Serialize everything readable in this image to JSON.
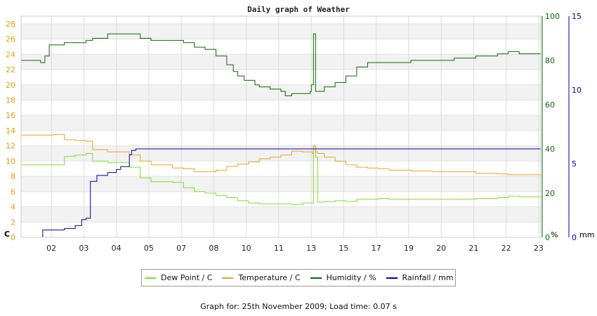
{
  "chart_data": {
    "type": "line",
    "title": "Daily graph of Weather",
    "x_tick_labels": [
      "02",
      "03",
      "04",
      "05",
      "07",
      "08",
      "10",
      "11",
      "13",
      "15",
      "17",
      "19",
      "20",
      "21",
      "22",
      "23"
    ],
    "axes": {
      "left": {
        "unit_label": "C",
        "ticks": [
          "0",
          "2",
          "4",
          "6",
          "8",
          "10",
          "12",
          "14",
          "16",
          "18",
          "20",
          "22",
          "24",
          "26",
          "28"
        ],
        "range": [
          0,
          29
        ],
        "color": "#e8a000"
      },
      "right1": {
        "unit_label": "%",
        "ticks": [
          "0",
          "20",
          "40",
          "60",
          "80",
          "100"
        ],
        "range": [
          0,
          100
        ],
        "color": "#0a6a00"
      },
      "right2": {
        "unit_label": "mm",
        "ticks": [
          "0",
          "5",
          "10",
          "15"
        ],
        "range": [
          0,
          15
        ],
        "color": "#0000aa"
      }
    },
    "series": [
      {
        "name": "Dew Point / C",
        "axis": "left",
        "color": "#7fe02a",
        "x": [
          0,
          1,
          1.5,
          2,
          2.5,
          3,
          3.3,
          4,
          5,
          5.5,
          6,
          7,
          7.5,
          8,
          8.5,
          9,
          9.5,
          10,
          10.5,
          11,
          11.5,
          12,
          12.5,
          13,
          13.45,
          13.5,
          13.6,
          13.7,
          14,
          14.5,
          15,
          15.5,
          16,
          16.5,
          17,
          18,
          19,
          20,
          21,
          22,
          22.5,
          23,
          23.5
        ],
        "y": [
          9.5,
          9.5,
          9.5,
          10.6,
          10.8,
          11,
          10,
          9.8,
          9.2,
          7.8,
          7.3,
          7.2,
          6.5,
          6,
          5.8,
          5.5,
          5.2,
          4.8,
          4.5,
          4.4,
          4.4,
          4.4,
          4.3,
          4.5,
          4.5,
          12,
          10.5,
          4.6,
          4.7,
          4.8,
          4.7,
          5,
          5,
          5.1,
          5,
          5,
          5,
          5,
          5.1,
          5.2,
          5.4,
          5.3,
          5.3
        ]
      },
      {
        "name": "Temperature / C",
        "axis": "left",
        "color": "#f0a020",
        "x": [
          0,
          1,
          1.5,
          2,
          2.5,
          3,
          3.3,
          4,
          5,
          5.5,
          6,
          7,
          7.5,
          8,
          8.5,
          9,
          9.5,
          10,
          10.5,
          11,
          11.5,
          12,
          12.5,
          13,
          13.45,
          13.5,
          13.6,
          13.7,
          14,
          14.5,
          15,
          15.5,
          16,
          16.5,
          17,
          18,
          19,
          20,
          21,
          22,
          22.5,
          23,
          23.5
        ],
        "y": [
          13.4,
          13.4,
          13.5,
          12.8,
          12.7,
          12.6,
          11.5,
          11.2,
          10.8,
          10,
          9.5,
          9.1,
          9,
          8.6,
          8.6,
          8.8,
          9.3,
          9.6,
          9.9,
          10.3,
          10.5,
          10.8,
          11.3,
          11.2,
          11,
          12,
          11.2,
          11,
          10.5,
          10,
          9.5,
          9.2,
          9.1,
          9,
          8.8,
          8.7,
          8.6,
          8.6,
          8.4,
          8.3,
          8.2,
          8.2,
          8.2
        ]
      },
      {
        "name": "Humidity / %",
        "axis": "right1",
        "color": "#0a6a00",
        "x": [
          0,
          0.9,
          1.1,
          1.3,
          2,
          2.5,
          3,
          3.3,
          4,
          5,
          5.5,
          6,
          7,
          7.5,
          8,
          8.5,
          9,
          9.5,
          9.8,
          10,
          10.3,
          10.8,
          11,
          11.5,
          12,
          12.2,
          12.5,
          13,
          13.35,
          13.4,
          13.5,
          13.55,
          13.6,
          14,
          14.5,
          15,
          15.5,
          16,
          16.5,
          17,
          18,
          19,
          20,
          21,
          22,
          22.5,
          23,
          23.5
        ],
        "y": [
          80,
          79,
          82,
          87,
          88,
          88,
          89,
          90,
          92,
          92,
          90,
          89,
          89,
          88,
          86,
          85,
          82,
          78,
          75,
          73,
          71,
          69,
          68,
          67,
          66,
          64,
          65,
          65,
          66,
          69,
          92,
          92,
          66,
          68,
          70,
          73,
          77,
          79,
          79,
          79,
          80,
          80,
          81,
          82,
          83,
          84,
          83,
          83
        ]
      },
      {
        "name": "Rainfall / mm",
        "axis": "right2",
        "color": "#0000aa",
        "x": [
          0,
          0.9,
          1,
          1.5,
          2,
          2.5,
          2.8,
          3,
          3.2,
          3.5,
          4,
          4.4,
          4.6,
          5,
          5.1,
          5.3,
          6,
          8,
          10,
          12,
          14,
          16,
          18,
          20,
          22,
          23.5
        ],
        "y": [
          0,
          0,
          0.5,
          0.5,
          0.6,
          0.8,
          1.2,
          1.3,
          3.8,
          4.2,
          4.4,
          4.6,
          4.8,
          5.6,
          5.9,
          6,
          6,
          6,
          6,
          6,
          6,
          6,
          6,
          6,
          6,
          6
        ]
      }
    ],
    "grid": true
  },
  "legend": {
    "items": [
      {
        "label": "Dew Point / C",
        "color": "#7fe02a"
      },
      {
        "label": "Temperature / C",
        "color": "#f0a020"
      },
      {
        "label": "Humidity / %",
        "color": "#0a6a00"
      },
      {
        "label": "Rainfall / mm",
        "color": "#0000aa"
      }
    ]
  },
  "footer": {
    "text": "Graph for: 25th November 2009; Load time: 0.07 s"
  }
}
